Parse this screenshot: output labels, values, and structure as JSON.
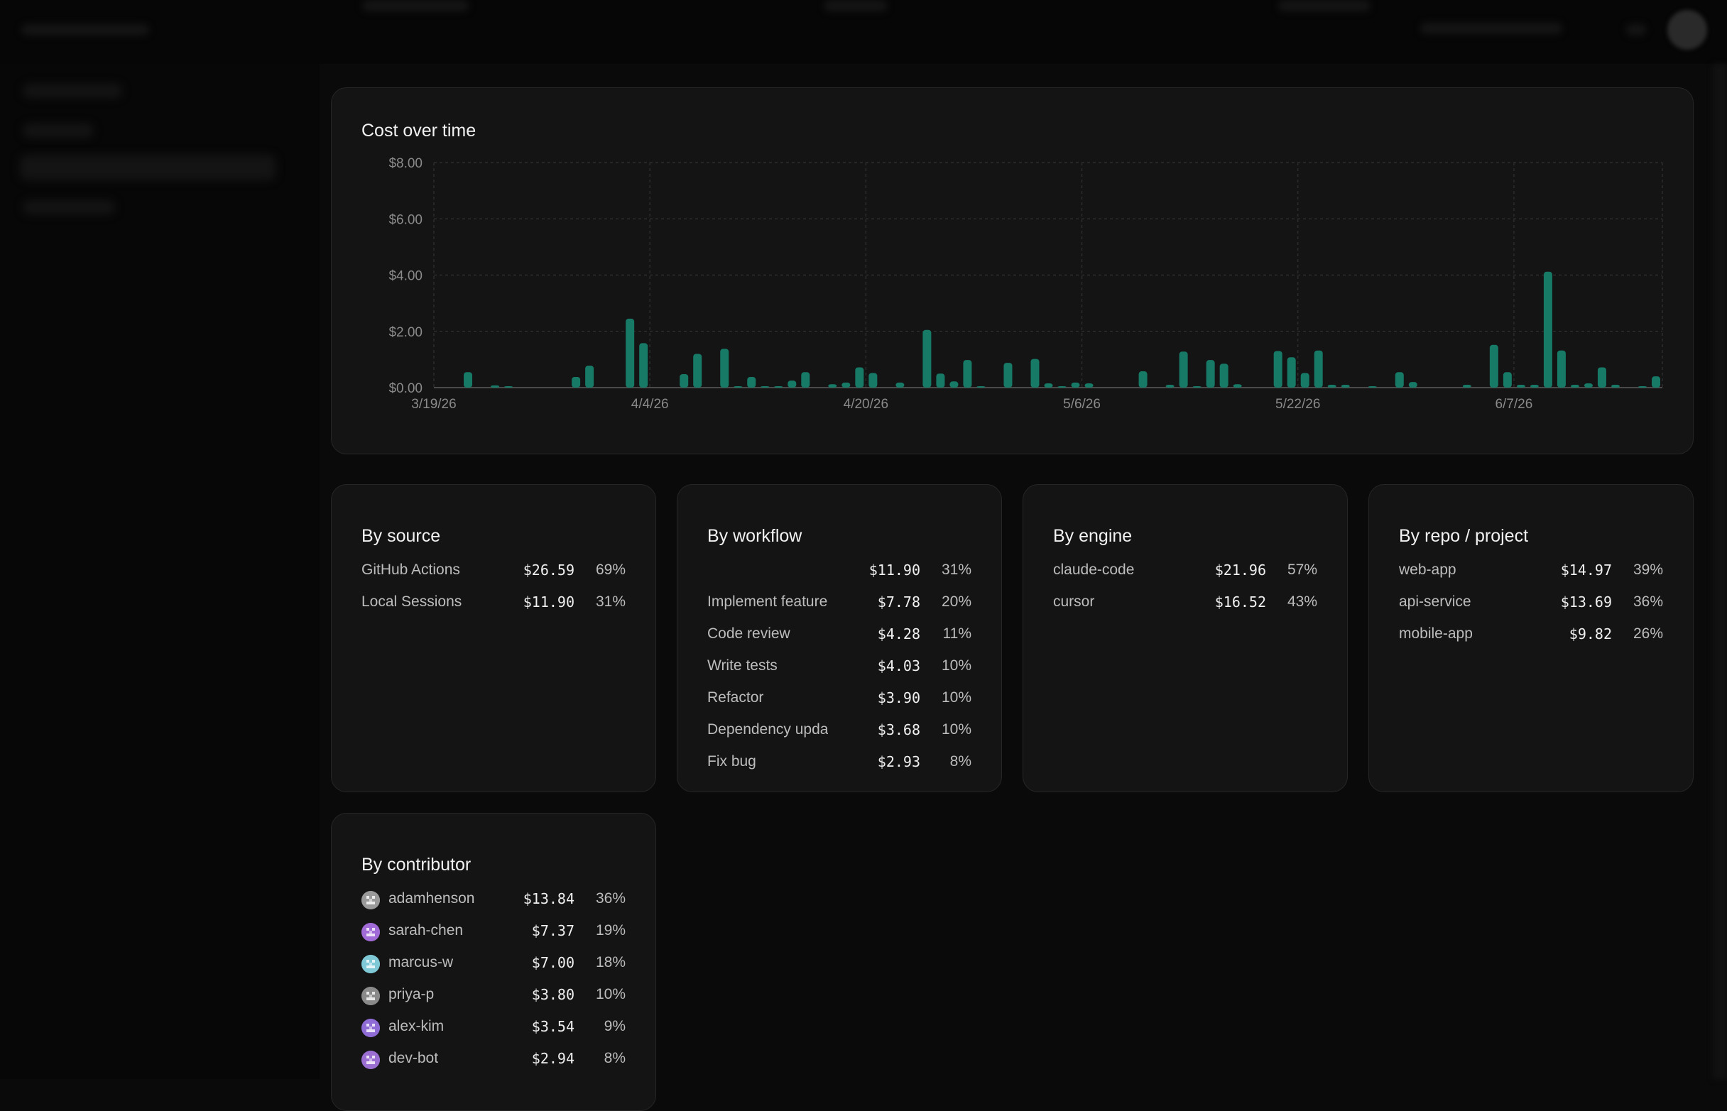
{
  "chart": {
    "title": "Cost over time"
  },
  "chart_data": {
    "type": "bar",
    "title": "Cost over time",
    "xlabel": "",
    "ylabel": "",
    "ylim": [
      0,
      8
    ],
    "yticks": [
      "$8.00",
      "$6.00",
      "$4.00",
      "$2.00",
      "$0.00"
    ],
    "ytick_values": [
      8,
      6,
      4,
      2,
      0
    ],
    "xticks": [
      "3/19/26",
      "4/4/26",
      "4/20/26",
      "5/6/26",
      "5/22/26",
      "6/7/26"
    ],
    "xtick_days": [
      0,
      16,
      32,
      48,
      64,
      80
    ],
    "start": "3/19/26",
    "grid": true,
    "color": "#167a67",
    "points": [
      {
        "d": 2,
        "v": 0.55
      },
      {
        "d": 4,
        "v": 0.08
      },
      {
        "d": 5,
        "v": 0.04
      },
      {
        "d": 10,
        "v": 0.38
      },
      {
        "d": 11,
        "v": 0.78
      },
      {
        "d": 14,
        "v": 2.45
      },
      {
        "d": 15,
        "v": 1.58
      },
      {
        "d": 18,
        "v": 0.48
      },
      {
        "d": 19,
        "v": 1.2
      },
      {
        "d": 21,
        "v": 1.38
      },
      {
        "d": 22,
        "v": 0.05
      },
      {
        "d": 23,
        "v": 0.38
      },
      {
        "d": 24,
        "v": 0.05
      },
      {
        "d": 25,
        "v": 0.05
      },
      {
        "d": 26,
        "v": 0.25
      },
      {
        "d": 27,
        "v": 0.55
      },
      {
        "d": 29,
        "v": 0.12
      },
      {
        "d": 30,
        "v": 0.18
      },
      {
        "d": 31,
        "v": 0.72
      },
      {
        "d": 32,
        "v": 0.52
      },
      {
        "d": 34,
        "v": 0.18
      },
      {
        "d": 36,
        "v": 2.05
      },
      {
        "d": 37,
        "v": 0.5
      },
      {
        "d": 38,
        "v": 0.22
      },
      {
        "d": 39,
        "v": 0.98
      },
      {
        "d": 40,
        "v": 0.05
      },
      {
        "d": 42,
        "v": 0.88
      },
      {
        "d": 44,
        "v": 1.02
      },
      {
        "d": 45,
        "v": 0.15
      },
      {
        "d": 46,
        "v": 0.05
      },
      {
        "d": 47,
        "v": 0.18
      },
      {
        "d": 48,
        "v": 0.15
      },
      {
        "d": 52,
        "v": 0.58
      },
      {
        "d": 54,
        "v": 0.1
      },
      {
        "d": 55,
        "v": 1.28
      },
      {
        "d": 56,
        "v": 0.05
      },
      {
        "d": 57,
        "v": 0.98
      },
      {
        "d": 58,
        "v": 0.85
      },
      {
        "d": 59,
        "v": 0.12
      },
      {
        "d": 62,
        "v": 1.3
      },
      {
        "d": 63,
        "v": 1.08
      },
      {
        "d": 64,
        "v": 0.52
      },
      {
        "d": 65,
        "v": 1.32
      },
      {
        "d": 66,
        "v": 0.1
      },
      {
        "d": 67,
        "v": 0.1
      },
      {
        "d": 69,
        "v": 0.04
      },
      {
        "d": 71,
        "v": 0.55
      },
      {
        "d": 72,
        "v": 0.2
      },
      {
        "d": 76,
        "v": 0.1
      },
      {
        "d": 78,
        "v": 1.52
      },
      {
        "d": 79,
        "v": 0.55
      },
      {
        "d": 80,
        "v": 0.1
      },
      {
        "d": 81,
        "v": 0.1
      },
      {
        "d": 82,
        "v": 4.12
      },
      {
        "d": 83,
        "v": 1.32
      },
      {
        "d": 84,
        "v": 0.1
      },
      {
        "d": 85,
        "v": 0.15
      },
      {
        "d": 86,
        "v": 0.72
      },
      {
        "d": 87,
        "v": 0.1
      },
      {
        "d": 89,
        "v": 0.05
      },
      {
        "d": 90,
        "v": 0.4
      }
    ]
  },
  "cards": {
    "source": {
      "title": "By source",
      "rows": [
        {
          "label": "GitHub Actions",
          "amount": "$26.59",
          "pct": "69%"
        },
        {
          "label": "Local Sessions",
          "amount": "$11.90",
          "pct": "31%"
        }
      ]
    },
    "workflow": {
      "title": "By workflow",
      "rows": [
        {
          "label": "",
          "amount": "$11.90",
          "pct": "31%"
        },
        {
          "label": "Implement feature",
          "amount": "$7.78",
          "pct": "20%"
        },
        {
          "label": "Code review",
          "amount": "$4.28",
          "pct": "11%"
        },
        {
          "label": "Write tests",
          "amount": "$4.03",
          "pct": "10%"
        },
        {
          "label": "Refactor",
          "amount": "$3.90",
          "pct": "10%"
        },
        {
          "label": "Dependency upda",
          "amount": "$3.68",
          "pct": "10%"
        },
        {
          "label": "Fix bug",
          "amount": "$2.93",
          "pct": "8%"
        }
      ]
    },
    "engine": {
      "title": "By engine",
      "rows": [
        {
          "label": "claude-code",
          "amount": "$21.96",
          "pct": "57%"
        },
        {
          "label": "cursor",
          "amount": "$16.52",
          "pct": "43%"
        }
      ]
    },
    "repo": {
      "title": "By repo / project",
      "rows": [
        {
          "label": "web-app",
          "amount": "$14.97",
          "pct": "39%"
        },
        {
          "label": "api-service",
          "amount": "$13.69",
          "pct": "36%"
        },
        {
          "label": "mobile-app",
          "amount": "$9.82",
          "pct": "26%"
        }
      ]
    },
    "contributor": {
      "title": "By contributor",
      "rows": [
        {
          "label": "adamhenson",
          "amount": "$13.84",
          "pct": "36%",
          "avatar": "#9a9a9a"
        },
        {
          "label": "sarah-chen",
          "amount": "$7.37",
          "pct": "19%",
          "avatar": "#a06bd6"
        },
        {
          "label": "marcus-w",
          "amount": "$7.00",
          "pct": "18%",
          "avatar": "#7fc9d6"
        },
        {
          "label": "priya-p",
          "amount": "$3.80",
          "pct": "10%",
          "avatar": "#8a8a8a"
        },
        {
          "label": "alex-kim",
          "amount": "$3.54",
          "pct": "9%",
          "avatar": "#8f6bd6"
        },
        {
          "label": "dev-bot",
          "amount": "$2.94",
          "pct": "8%",
          "avatar": "#9a6fd1"
        }
      ]
    }
  }
}
